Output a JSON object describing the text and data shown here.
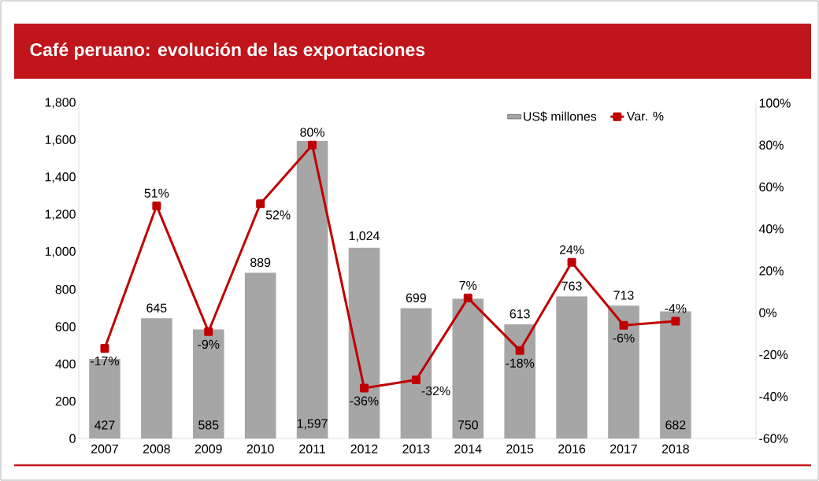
{
  "chart_data": {
    "type": "bar",
    "title": "Café peruano: evolución de las exportaciones",
    "categories": [
      "2007",
      "2008",
      "2009",
      "2010",
      "2011",
      "2012",
      "2013",
      "2014",
      "2015",
      "2016",
      "2017",
      "2018"
    ],
    "series": [
      {
        "name": "US$ millones",
        "color": "#a6a6a6",
        "values": [
          427,
          645,
          585,
          889,
          1597,
          1024,
          699,
          750,
          613,
          763,
          713,
          682
        ],
        "value_labels": [
          "427",
          "645",
          "585",
          "889",
          "1,597",
          "1,024",
          "699",
          "750",
          "613",
          "763",
          "713",
          "682"
        ]
      },
      {
        "name": "Var. %",
        "type": "line",
        "axis": "y2",
        "color": "#c00000",
        "marker": "square",
        "values": [
          -17,
          51,
          -9,
          52,
          80,
          -36,
          -32,
          7,
          -18,
          24,
          -6,
          -4
        ],
        "value_labels": [
          "-17%",
          "51%",
          "-9%",
          "52%",
          "80%",
          "-36%",
          "-32%",
          "7%",
          "-18%",
          "24%",
          "-6%",
          "-4%"
        ]
      }
    ],
    "ylim": [
      0,
      1800
    ],
    "yticks": [
      0,
      200,
      400,
      600,
      800,
      {
        "value": 1000,
        "label": "1,000"
      },
      {
        "value": 1200,
        "label": "1,200"
      },
      {
        "value": 1400,
        "label": "1,400"
      },
      {
        "value": 1600,
        "label": "1,600"
      },
      {
        "value": 1800,
        "label": "1,800"
      }
    ],
    "y2lim": [
      -60,
      100
    ],
    "y2ticks": [
      {
        "value": -60,
        "label": "-60%"
      },
      {
        "value": -40,
        "label": "-40%"
      },
      {
        "value": -20,
        "label": "-20%"
      },
      {
        "value": 0,
        "label": "0%"
      },
      {
        "value": 20,
        "label": "20%"
      },
      {
        "value": 40,
        "label": "40%"
      },
      {
        "value": 60,
        "label": "60%"
      },
      {
        "value": 80,
        "label": "80%"
      },
      {
        "value": 100,
        "label": "100%"
      }
    ],
    "legend": "top right",
    "grid": false
  }
}
